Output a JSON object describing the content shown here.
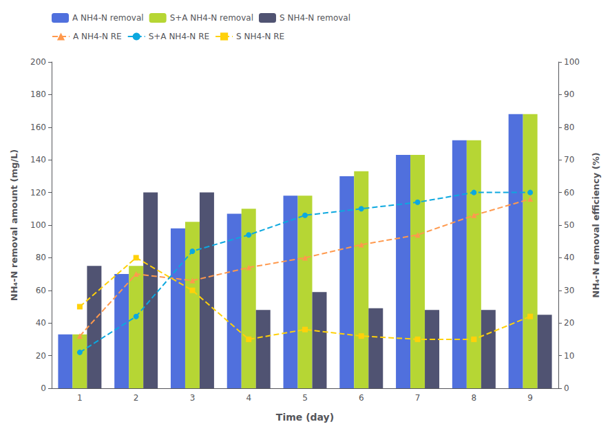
{
  "chart_data": {
    "type": "bar",
    "categories": [
      1,
      2,
      3,
      4,
      5,
      6,
      7,
      8,
      9
    ],
    "xlabel": "Time (day)",
    "ylabel": "NH₄-N removal amount (mg/L)",
    "y2label": "NH₄-N removal efficiency (%)",
    "ylim": [
      0,
      200
    ],
    "yticks": [
      0,
      20,
      40,
      60,
      80,
      100,
      120,
      140,
      160,
      180,
      200
    ],
    "y2lim": [
      0,
      100
    ],
    "y2ticks": [
      0,
      10,
      20,
      30,
      40,
      50,
      60,
      70,
      80,
      90,
      100
    ],
    "grid": false,
    "legend": "upper left",
    "series": [
      {
        "name": "A NH4-N removal",
        "type": "bar",
        "values": [
          33,
          70,
          98,
          107,
          118,
          130,
          143,
          152,
          168
        ]
      },
      {
        "name": "S+A NH4-N removal",
        "type": "bar",
        "values": [
          33,
          75,
          102,
          110,
          118,
          133,
          143,
          152,
          168
        ]
      },
      {
        "name": "S NH4-N removal",
        "type": "bar",
        "values": [
          75,
          120,
          120,
          48,
          59,
          49,
          48,
          48,
          45
        ]
      },
      {
        "name": "A NH4-N RE",
        "type": "line",
        "axis": "y2",
        "marker": "triangle",
        "line_style": "dashed",
        "values": [
          16,
          35,
          33,
          37,
          40,
          44,
          47,
          53,
          58
        ]
      },
      {
        "name": "S+A NH4-N RE",
        "type": "line",
        "axis": "y2",
        "marker": "circle",
        "line_style": "dashed",
        "values": [
          11,
          22,
          42,
          47,
          53,
          55,
          57,
          60,
          60
        ]
      },
      {
        "name": "S NH4-N RE",
        "type": "line",
        "axis": "y2",
        "marker": "square",
        "line_style": "dashed",
        "values": [
          25,
          40,
          30,
          15,
          18,
          16,
          15,
          15,
          22
        ]
      }
    ]
  }
}
